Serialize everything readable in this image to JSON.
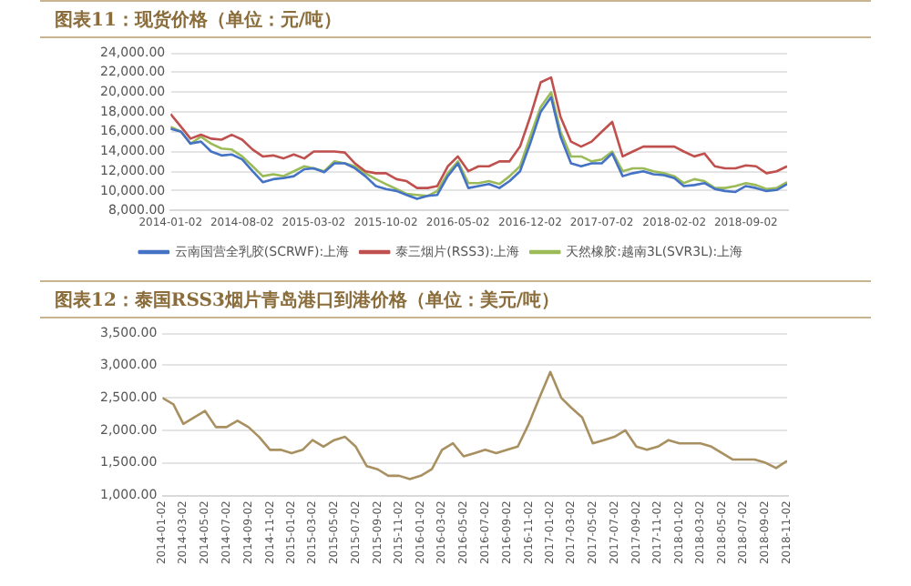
{
  "chart_data": [
    {
      "type": "line",
      "title": "图表11：现货价格（单位：元/吨）",
      "x": [
        "2014-01-02",
        "2014-02-02",
        "2014-03-02",
        "2014-04-02",
        "2014-05-02",
        "2014-06-02",
        "2014-07-02",
        "2014-08-02",
        "2014-09-02",
        "2014-10-02",
        "2014-11-02",
        "2014-12-02",
        "2015-01-02",
        "2015-02-02",
        "2015-03-02",
        "2015-04-02",
        "2015-05-02",
        "2015-06-02",
        "2015-07-02",
        "2015-08-02",
        "2015-09-02",
        "2015-10-02",
        "2015-11-02",
        "2015-12-02",
        "2016-01-02",
        "2016-02-02",
        "2016-03-02",
        "2016-04-02",
        "2016-05-02",
        "2016-06-02",
        "2016-07-02",
        "2016-08-02",
        "2016-09-02",
        "2016-10-02",
        "2016-11-02",
        "2016-12-02",
        "2017-01-02",
        "2017-02-02",
        "2017-03-02",
        "2017-04-02",
        "2017-05-02",
        "2017-06-02",
        "2017-07-02",
        "2017-08-02",
        "2017-09-02",
        "2017-10-02",
        "2017-11-02",
        "2017-12-02",
        "2018-01-02",
        "2018-02-02",
        "2018-03-02",
        "2018-04-02",
        "2018-05-02",
        "2018-06-02",
        "2018-07-02",
        "2018-08-02",
        "2018-09-02",
        "2018-10-02",
        "2018-11-02",
        "2018-12-02",
        "2019-01-02"
      ],
      "series": [
        {
          "name": "云南国营全乳胶(SCRWF):上海",
          "color": "#4472c4",
          "values": [
            16300,
            16000,
            14800,
            15000,
            14000,
            13600,
            13700,
            13200,
            12000,
            10900,
            11200,
            11300,
            11500,
            12200,
            12300,
            11900,
            12800,
            12800,
            12300,
            11500,
            10500,
            10200,
            10000,
            9600,
            9200,
            9500,
            9600,
            11500,
            12800,
            10300,
            10500,
            10700,
            10300,
            11000,
            12000,
            14800,
            18000,
            19500,
            15500,
            12800,
            12500,
            12800,
            12800,
            13800,
            11500,
            11800,
            12000,
            11700,
            11600,
            11300,
            10500,
            10600,
            10800,
            10200,
            10000,
            9900,
            10500,
            10300,
            10000,
            10100,
            10700
          ]
        },
        {
          "name": "泰三烟片(RSS3):上海",
          "color": "#c0504d",
          "values": [
            17800,
            16500,
            15300,
            15700,
            15300,
            15200,
            15700,
            15200,
            14200,
            13500,
            13600,
            13300,
            13700,
            13300,
            14000,
            14000,
            14000,
            13900,
            12800,
            12000,
            11800,
            11800,
            11200,
            11000,
            10300,
            10300,
            10500,
            12500,
            13500,
            12000,
            12500,
            12500,
            13000,
            13000,
            14500,
            17500,
            21000,
            21500,
            17500,
            15000,
            14500,
            15000,
            16000,
            17000,
            13500,
            14000,
            14500,
            14500,
            14500,
            14500,
            14000,
            13500,
            13800,
            12500,
            12300,
            12300,
            12600,
            12500,
            11800,
            12000,
            12500
          ]
        },
        {
          "name": "天然橡胶:越南3L(SVR3L):上海",
          "color": "#9bbb59",
          "values": [
            16500,
            16000,
            14800,
            15500,
            14800,
            14300,
            14200,
            13500,
            12500,
            11500,
            11700,
            11500,
            12000,
            12500,
            12300,
            12000,
            13000,
            12800,
            12500,
            11800,
            11200,
            10700,
            10200,
            9700,
            9600,
            9500,
            10000,
            11800,
            13000,
            10800,
            10800,
            11000,
            10700,
            11500,
            12500,
            15500,
            18500,
            20000,
            16000,
            13500,
            13500,
            13000,
            13200,
            14000,
            12000,
            12300,
            12300,
            12000,
            11800,
            11500,
            10800,
            11200,
            11000,
            10300,
            10300,
            10500,
            10800,
            10600,
            10200,
            10300,
            10900
          ]
        }
      ],
      "xlim": [
        "2014-01-02",
        "2019-01-02"
      ],
      "xticks": [
        "2014-01-02",
        "2014-08-02",
        "2015-03-02",
        "2015-10-02",
        "2016-05-02",
        "2016-12-02",
        "2017-07-02",
        "2018-02-02",
        "2018-09-02"
      ],
      "ylim": [
        8000,
        24000
      ],
      "yticks": [
        {
          "value": 8000,
          "label": "8,000.00"
        },
        {
          "value": 10000,
          "label": "10,000.00"
        },
        {
          "value": 12000,
          "label": "12,000.00"
        },
        {
          "value": 14000,
          "label": "14,000.00"
        },
        {
          "value": 16000,
          "label": "16,000.00"
        },
        {
          "value": 18000,
          "label": "18,000.00"
        },
        {
          "value": 20000,
          "label": "20,000.00"
        },
        {
          "value": 22000,
          "label": "22,000.00"
        },
        {
          "value": 24000,
          "label": "24,000.00"
        }
      ],
      "grid": "y",
      "legend": "bottom",
      "marker": "none"
    },
    {
      "type": "line",
      "title": "图表12：泰国RSS3烟片青岛港口到港价格（单位：美元/吨）",
      "x": [
        "2014-01-02",
        "2014-02-02",
        "2014-03-02",
        "2014-04-02",
        "2014-05-02",
        "2014-06-02",
        "2014-07-02",
        "2014-08-02",
        "2014-09-02",
        "2014-10-02",
        "2014-11-02",
        "2014-12-02",
        "2015-01-02",
        "2015-02-02",
        "2015-03-02",
        "2015-04-02",
        "2015-05-02",
        "2015-06-02",
        "2015-07-02",
        "2015-08-02",
        "2015-09-02",
        "2015-10-02",
        "2015-11-02",
        "2015-12-02",
        "2016-01-02",
        "2016-02-02",
        "2016-03-02",
        "2016-04-02",
        "2016-05-02",
        "2016-06-02",
        "2016-07-02",
        "2016-08-02",
        "2016-09-02",
        "2016-10-02",
        "2016-11-02",
        "2016-12-02",
        "2017-01-02",
        "2017-02-02",
        "2017-03-02",
        "2017-04-02",
        "2017-05-02",
        "2017-06-02",
        "2017-07-02",
        "2017-08-02",
        "2017-09-02",
        "2017-10-02",
        "2017-11-02",
        "2017-12-02",
        "2018-01-02",
        "2018-02-02",
        "2018-03-02",
        "2018-04-02",
        "2018-05-02",
        "2018-06-02",
        "2018-07-02",
        "2018-08-02",
        "2018-09-02",
        "2018-10-02",
        "2018-11-02"
      ],
      "series": [
        {
          "color": "#a89060",
          "values": [
            2500,
            2400,
            2100,
            2200,
            2300,
            2050,
            2050,
            2150,
            2050,
            1900,
            1700,
            1700,
            1650,
            1700,
            1850,
            1750,
            1850,
            1900,
            1750,
            1450,
            1400,
            1300,
            1300,
            1250,
            1300,
            1400,
            1700,
            1800,
            1600,
            1650,
            1700,
            1650,
            1700,
            1750,
            2100,
            2500,
            2900,
            2500,
            2350,
            2200,
            1800,
            1850,
            1900,
            2000,
            1750,
            1700,
            1750,
            1850,
            1800,
            1800,
            1800,
            1750,
            1650,
            1550,
            1550,
            1550,
            1500,
            1420,
            1530
          ]
        }
      ],
      "xlim": [
        "2014-01-02",
        "2018-11-02"
      ],
      "xticks": [
        "2014-01-02",
        "2014-03-02",
        "2014-05-02",
        "2014-07-02",
        "2014-09-02",
        "2014-11-02",
        "2015-01-02",
        "2015-03-02",
        "2015-05-02",
        "2015-07-02",
        "2015-09-02",
        "2015-11-02",
        "2016-01-02",
        "2016-03-02",
        "2016-05-02",
        "2016-07-02",
        "2016-09-02",
        "2016-11-02",
        "2017-01-02",
        "2017-03-02",
        "2017-05-02",
        "2017-07-02",
        "2017-09-02",
        "2017-11-02",
        "2018-01-02",
        "2018-03-02",
        "2018-05-02",
        "2018-07-02",
        "2018-09-02",
        "2018-11-02"
      ],
      "ylim": [
        1000,
        3500
      ],
      "yticks": [
        {
          "value": 1000,
          "label": "1,000.00"
        },
        {
          "value": 1500,
          "label": "1,500.00"
        },
        {
          "value": 2000,
          "label": "2,000.00"
        },
        {
          "value": 2500,
          "label": "2,500.00"
        },
        {
          "value": 3000,
          "label": "3,000.00"
        },
        {
          "value": 3500,
          "label": "3,500.00"
        }
      ],
      "grid": "y",
      "marker": "none"
    }
  ]
}
